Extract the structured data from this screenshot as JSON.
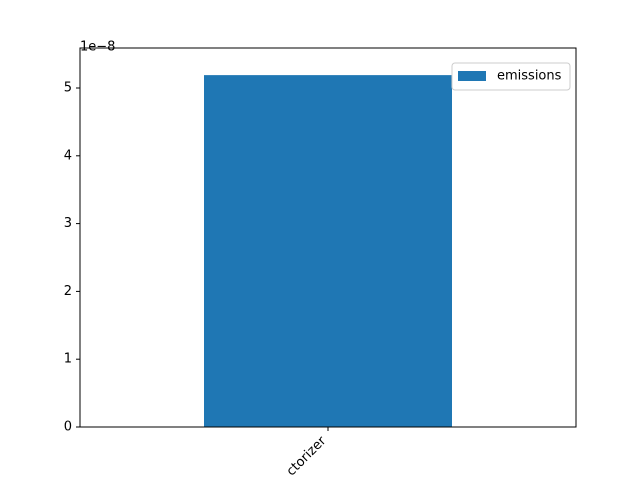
{
  "chart_data": {
    "type": "bar",
    "categories": [
      "ctorizer"
    ],
    "series": [
      {
        "name": "emissions",
        "color": "#1f77b4",
        "values": [
          5.19
        ]
      }
    ],
    "ylim": [
      0,
      5.59
    ],
    "yticks": [
      0,
      1,
      2,
      3,
      4,
      5
    ],
    "y_offset_label": "1e−8",
    "legend": "upper right"
  }
}
